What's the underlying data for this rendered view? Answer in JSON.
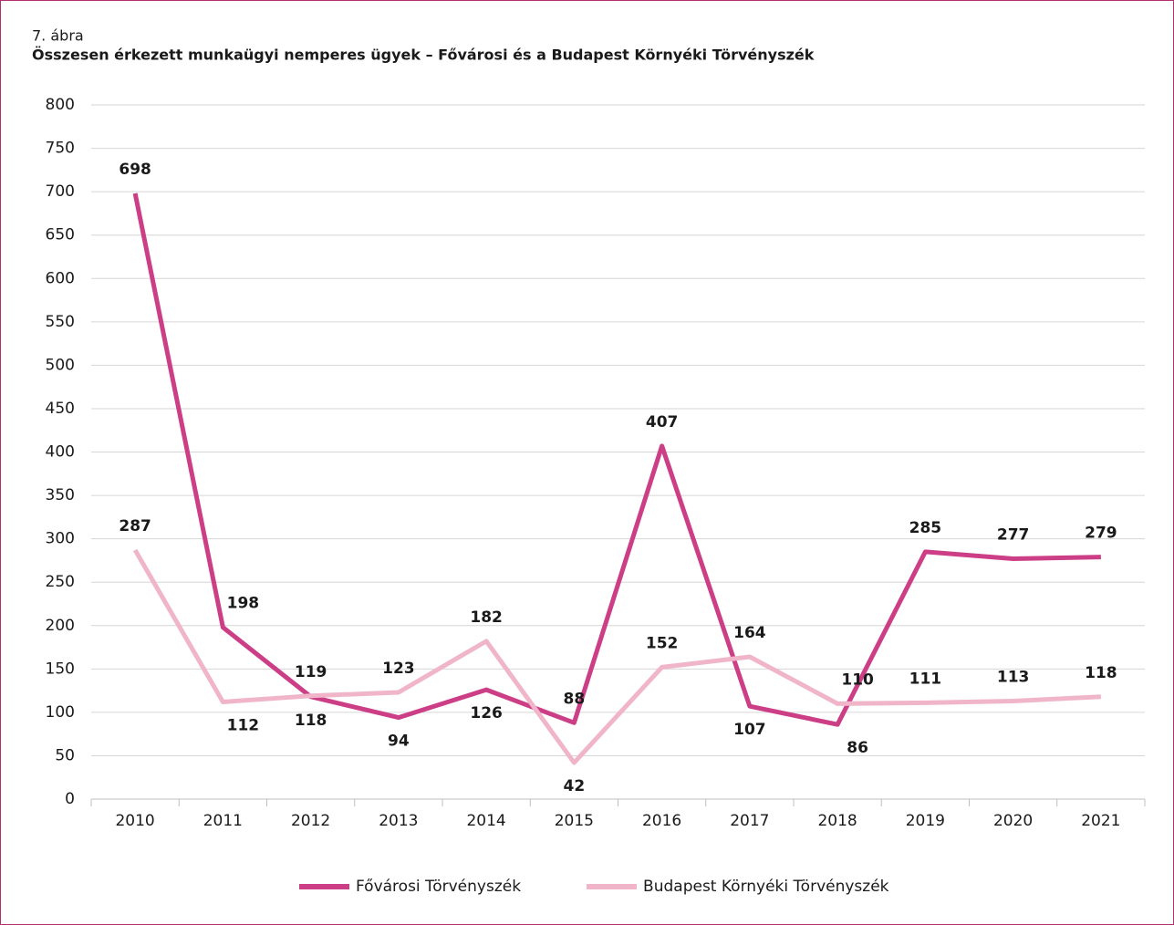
{
  "chart_data": {
    "type": "line",
    "figure_label": "7. ábra",
    "title": "Összesen érkezett munkaügyi nemperes ügyek – Fővárosi és a Budapest Környéki Törvényszék",
    "categories": [
      "2010",
      "2011",
      "2012",
      "2013",
      "2014",
      "2015",
      "2016",
      "2017",
      "2018",
      "2019",
      "2020",
      "2021"
    ],
    "series": [
      {
        "name": "Fővárosi Törvényszék",
        "color": "#cc3f86",
        "values": [
          698,
          198,
          118,
          94,
          126,
          88,
          407,
          107,
          86,
          285,
          277,
          279
        ]
      },
      {
        "name": "Budapest Környéki Törvényszék",
        "color": "#f0b5c9",
        "values": [
          287,
          112,
          119,
          123,
          182,
          42,
          152,
          164,
          110,
          111,
          113,
          118
        ]
      }
    ],
    "ylim": [
      0,
      800
    ],
    "yticks": [
      0,
      50,
      100,
      150,
      200,
      250,
      300,
      350,
      400,
      450,
      500,
      550,
      600,
      650,
      700,
      750,
      800
    ],
    "grid": true,
    "legend": "bottom"
  }
}
